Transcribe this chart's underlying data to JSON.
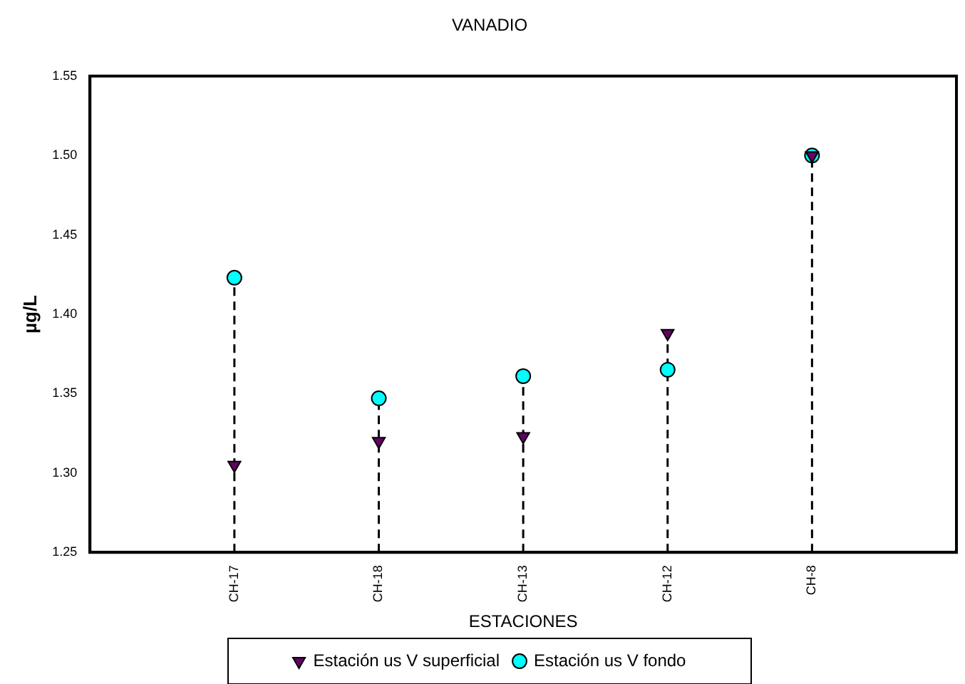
{
  "chart_data": {
    "type": "lollipop",
    "title": "VANADIO",
    "xlabel": "ESTACIONES",
    "ylabel": "µg/L",
    "categories": [
      "CH-17",
      "CH-18",
      "CH-13",
      "CH-12",
      "CH-8"
    ],
    "series": [
      {
        "name": "Estación us V superficial",
        "color": "#660066",
        "marker": "triangle",
        "values": [
          1.305,
          1.32,
          1.323,
          1.388,
          1.5
        ]
      },
      {
        "name": "Estación us V fondo",
        "color": "#00ffff",
        "marker": "circle",
        "values": [
          1.423,
          1.347,
          1.361,
          1.365,
          1.5
        ]
      }
    ],
    "ylim": [
      1.25,
      1.55
    ],
    "yticks": [
      {
        "value": 1.25,
        "label": "1.25"
      },
      {
        "value": 1.3,
        "label": "1.30"
      },
      {
        "value": 1.35,
        "label": "1.35"
      },
      {
        "value": 1.4,
        "label": "1.40"
      },
      {
        "value": 1.45,
        "label": "1.45"
      },
      {
        "value": 1.5,
        "label": "1.50"
      },
      {
        "value": 1.55,
        "label": "1.55"
      }
    ],
    "line_style": "dashed",
    "legend": "bottom"
  }
}
